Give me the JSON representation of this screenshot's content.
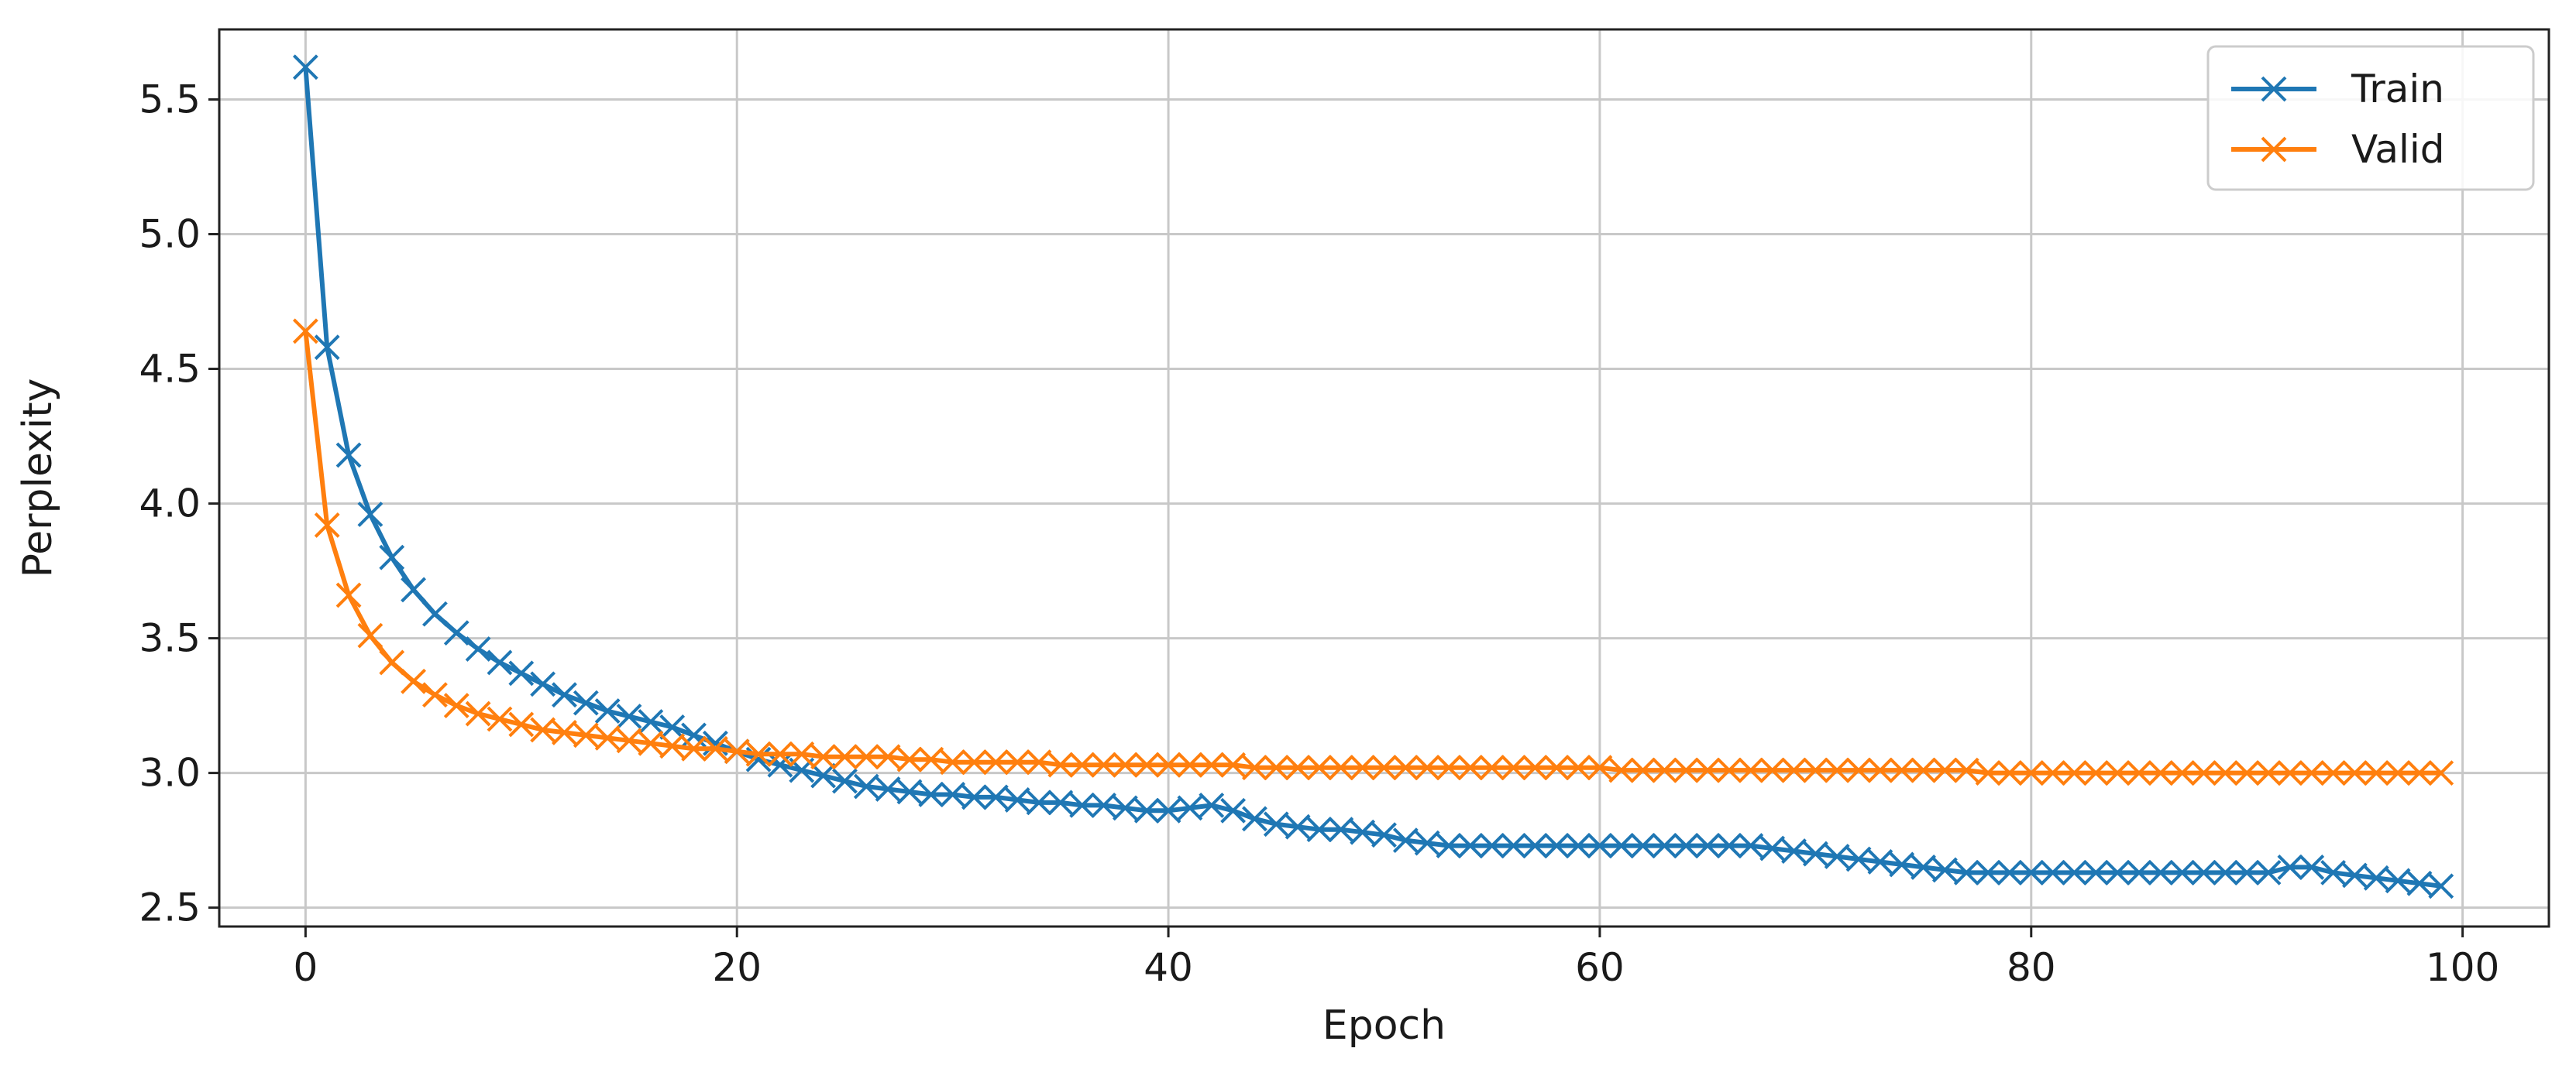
{
  "chart_data": {
    "type": "line",
    "title": "",
    "xlabel": "Epoch",
    "ylabel": "Perplexity",
    "xlim": [
      -4,
      104
    ],
    "ylim": [
      2.43,
      5.76
    ],
    "xticks": [
      0,
      20,
      40,
      60,
      80,
      100
    ],
    "yticks": [
      2.5,
      3.0,
      3.5,
      4.0,
      4.5,
      5.0,
      5.5
    ],
    "xtick_labels": [
      "0",
      "20",
      "40",
      "60",
      "80",
      "100"
    ],
    "ytick_labels": [
      "2.5",
      "3.0",
      "3.5",
      "4.0",
      "4.5",
      "5.0",
      "5.5"
    ],
    "grid": true,
    "legend_position": "top-right",
    "marker": "x",
    "x": [
      0,
      1,
      2,
      3,
      4,
      5,
      6,
      7,
      8,
      9,
      10,
      11,
      12,
      13,
      14,
      15,
      16,
      17,
      18,
      19,
      20,
      21,
      22,
      23,
      24,
      25,
      26,
      27,
      28,
      29,
      30,
      31,
      32,
      33,
      34,
      35,
      36,
      37,
      38,
      39,
      40,
      41,
      42,
      43,
      44,
      45,
      46,
      47,
      48,
      49,
      50,
      51,
      52,
      53,
      54,
      55,
      56,
      57,
      58,
      59,
      60,
      61,
      62,
      63,
      64,
      65,
      66,
      67,
      68,
      69,
      70,
      71,
      72,
      73,
      74,
      75,
      76,
      77,
      78,
      79,
      80,
      81,
      82,
      83,
      84,
      85,
      86,
      87,
      88,
      89,
      90,
      91,
      92,
      93,
      94,
      95,
      96,
      97,
      98,
      99
    ],
    "series": [
      {
        "name": "Train",
        "color": "#1f77b4",
        "values": [
          5.62,
          4.58,
          4.18,
          3.96,
          3.8,
          3.68,
          3.59,
          3.52,
          3.46,
          3.41,
          3.37,
          3.33,
          3.29,
          3.26,
          3.23,
          3.21,
          3.19,
          3.17,
          3.14,
          3.11,
          3.08,
          3.05,
          3.03,
          3.01,
          2.99,
          2.97,
          2.95,
          2.94,
          2.93,
          2.92,
          2.92,
          2.91,
          2.91,
          2.9,
          2.89,
          2.89,
          2.88,
          2.88,
          2.87,
          2.86,
          2.86,
          2.87,
          2.88,
          2.86,
          2.83,
          2.81,
          2.8,
          2.79,
          2.79,
          2.78,
          2.77,
          2.75,
          2.74,
          2.73,
          2.73,
          2.73,
          2.73,
          2.73,
          2.73,
          2.73,
          2.73,
          2.73,
          2.73,
          2.73,
          2.73,
          2.73,
          2.73,
          2.73,
          2.72,
          2.71,
          2.7,
          2.69,
          2.68,
          2.67,
          2.66,
          2.65,
          2.64,
          2.63,
          2.63,
          2.63,
          2.63,
          2.63,
          2.63,
          2.63,
          2.63,
          2.63,
          2.63,
          2.63,
          2.63,
          2.63,
          2.63,
          2.63,
          2.65,
          2.65,
          2.63,
          2.62,
          2.61,
          2.6,
          2.59,
          2.58
        ]
      },
      {
        "name": "Valid",
        "color": "#ff7f0e",
        "values": [
          4.64,
          3.92,
          3.66,
          3.51,
          3.41,
          3.34,
          3.29,
          3.25,
          3.22,
          3.2,
          3.18,
          3.16,
          3.15,
          3.14,
          3.13,
          3.12,
          3.11,
          3.1,
          3.09,
          3.09,
          3.08,
          3.07,
          3.07,
          3.07,
          3.06,
          3.06,
          3.06,
          3.06,
          3.05,
          3.05,
          3.04,
          3.04,
          3.04,
          3.04,
          3.04,
          3.03,
          3.03,
          3.03,
          3.03,
          3.03,
          3.03,
          3.03,
          3.03,
          3.03,
          3.02,
          3.02,
          3.02,
          3.02,
          3.02,
          3.02,
          3.02,
          3.02,
          3.02,
          3.02,
          3.02,
          3.02,
          3.02,
          3.02,
          3.02,
          3.02,
          3.02,
          3.01,
          3.01,
          3.01,
          3.01,
          3.01,
          3.01,
          3.01,
          3.01,
          3.01,
          3.01,
          3.01,
          3.01,
          3.01,
          3.01,
          3.01,
          3.01,
          3.01,
          3.0,
          3.0,
          3.0,
          3.0,
          3.0,
          3.0,
          3.0,
          3.0,
          3.0,
          3.0,
          3.0,
          3.0,
          3.0,
          3.0,
          3.0,
          3.0,
          3.0,
          3.0,
          3.0,
          3.0,
          3.0,
          3.0
        ]
      }
    ]
  }
}
